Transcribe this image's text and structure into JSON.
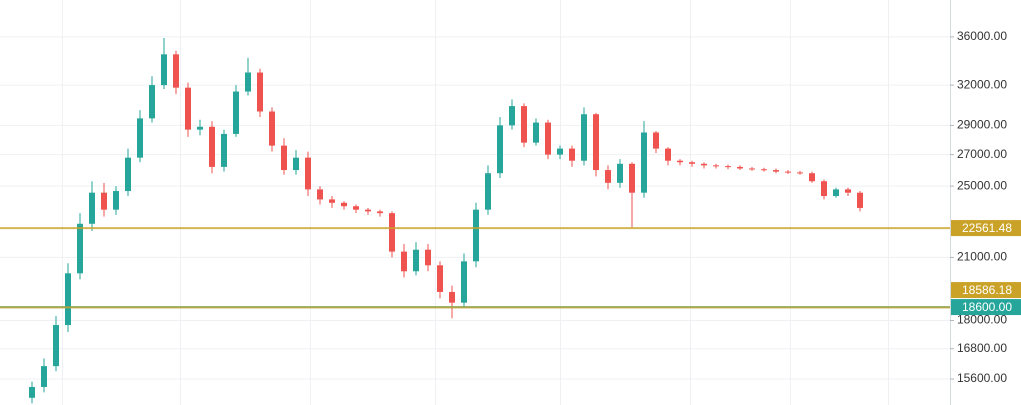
{
  "chart_data": {
    "type": "candlestick",
    "log_scale": true,
    "grid": true,
    "up_color": "#26a69a",
    "down_color": "#ef5350",
    "ylim": [
      14640,
      39400
    ],
    "yticks": [
      {
        "value": 15600,
        "label": "15600.00"
      },
      {
        "value": 16800,
        "label": "16800.00"
      },
      {
        "value": 18000,
        "label": "18000.00"
      },
      {
        "value": 21000,
        "label": "21000.00"
      },
      {
        "value": 25000,
        "label": "25000.00"
      },
      {
        "value": 27000,
        "label": "27000.00"
      },
      {
        "value": 29000,
        "label": "29000.00"
      },
      {
        "value": 32000,
        "label": "32000.00"
      },
      {
        "value": 36000,
        "label": "36000.00"
      }
    ],
    "price_lines": [
      {
        "value": 22561.48,
        "label": "22561.48",
        "color": "#c9a227"
      },
      {
        "value": 18600,
        "label": "18600.00",
        "color": "#26a69a"
      },
      {
        "value": 18586.18,
        "label": "18586.18",
        "color": "#c9a227"
      }
    ],
    "categories": [
      null,
      null,
      null,
      null,
      null,
      null,
      null,
      null,
      null,
      null,
      null,
      null,
      null,
      null,
      null,
      null,
      null,
      null,
      null,
      null,
      null,
      null,
      null,
      null,
      null,
      null,
      null,
      null,
      null,
      null,
      null,
      null,
      null,
      null,
      null,
      null,
      null,
      null,
      null,
      null,
      null,
      null,
      null,
      null,
      null,
      null,
      null,
      null,
      null,
      null,
      null,
      null,
      null,
      null,
      null,
      null,
      null,
      null,
      null,
      null,
      null,
      null,
      null,
      null,
      null,
      null,
      null,
      null,
      null,
      null
    ],
    "open": [
      14900,
      15300,
      16100,
      17800,
      20200,
      22800,
      24600,
      23600,
      24700,
      26800,
      29500,
      32000,
      34500,
      31800,
      28700,
      28900,
      26200,
      28400,
      31500,
      33000,
      30000,
      27600,
      26000,
      26800,
      24800,
      24200,
      24000,
      23800,
      23600,
      23500,
      23400,
      21300,
      20300,
      21400,
      20600,
      19300,
      18800,
      20800,
      23600,
      25800,
      29000,
      30400,
      27800,
      29200,
      27000,
      27400,
      26600,
      29800,
      26000,
      25200,
      26400,
      24600,
      28500,
      27400,
      26600,
      26500,
      26400,
      26300,
      26250,
      26200,
      26100,
      26050,
      26000,
      25900,
      25850,
      25800,
      25300,
      24400,
      24800,
      24600
    ],
    "high": [
      15500,
      16400,
      18200,
      20700,
      23400,
      25300,
      25200,
      25000,
      27400,
      30100,
      32700,
      35900,
      34800,
      32200,
      29400,
      29300,
      28700,
      32000,
      34200,
      33300,
      30300,
      28100,
      27300,
      27200,
      25000,
      24400,
      24100,
      23900,
      23700,
      23600,
      23500,
      21700,
      21800,
      21700,
      20800,
      19600,
      21200,
      24000,
      26300,
      29600,
      30900,
      30600,
      29500,
      29400,
      27600,
      27600,
      30300,
      29900,
      26300,
      26700,
      26500,
      29300,
      28600,
      27500,
      26700,
      26600,
      26500,
      26400,
      26350,
      26300,
      26200,
      26150,
      26100,
      26000,
      25950,
      25900,
      25400,
      24900,
      24900,
      24700
    ],
    "low": [
      14700,
      15100,
      15900,
      17500,
      19900,
      22400,
      23200,
      23300,
      24400,
      26500,
      29200,
      31700,
      31300,
      28200,
      28300,
      25800,
      25900,
      28200,
      31200,
      29600,
      27200,
      25700,
      25700,
      24400,
      23900,
      23700,
      23600,
      23400,
      23300,
      23200,
      21000,
      20000,
      20100,
      20300,
      19000,
      18100,
      18600,
      20500,
      23300,
      25500,
      28700,
      27500,
      27600,
      26700,
      26700,
      26200,
      26300,
      25600,
      24800,
      24900,
      22600,
      24300,
      27100,
      26300,
      26300,
      26200,
      26100,
      26100,
      26050,
      26000,
      25950,
      25900,
      25800,
      25750,
      25700,
      25200,
      24200,
      24300,
      24400,
      23500
    ],
    "close": [
      15300,
      16100,
      17800,
      20200,
      22800,
      24600,
      23600,
      24700,
      26800,
      29500,
      32000,
      34500,
      31800,
      28700,
      28900,
      26200,
      28400,
      31500,
      33000,
      30000,
      27600,
      26000,
      26800,
      24800,
      24200,
      24000,
      23800,
      23600,
      23500,
      23400,
      21300,
      20300,
      21400,
      20600,
      19300,
      18800,
      20800,
      23600,
      25800,
      29000,
      30400,
      27800,
      29200,
      27000,
      27400,
      26600,
      29800,
      26000,
      25200,
      26400,
      24600,
      28500,
      27400,
      26600,
      26500,
      26400,
      26300,
      26250,
      26200,
      26100,
      26050,
      26000,
      25900,
      25850,
      25800,
      25300,
      24400,
      24800,
      24600,
      23700
    ]
  }
}
